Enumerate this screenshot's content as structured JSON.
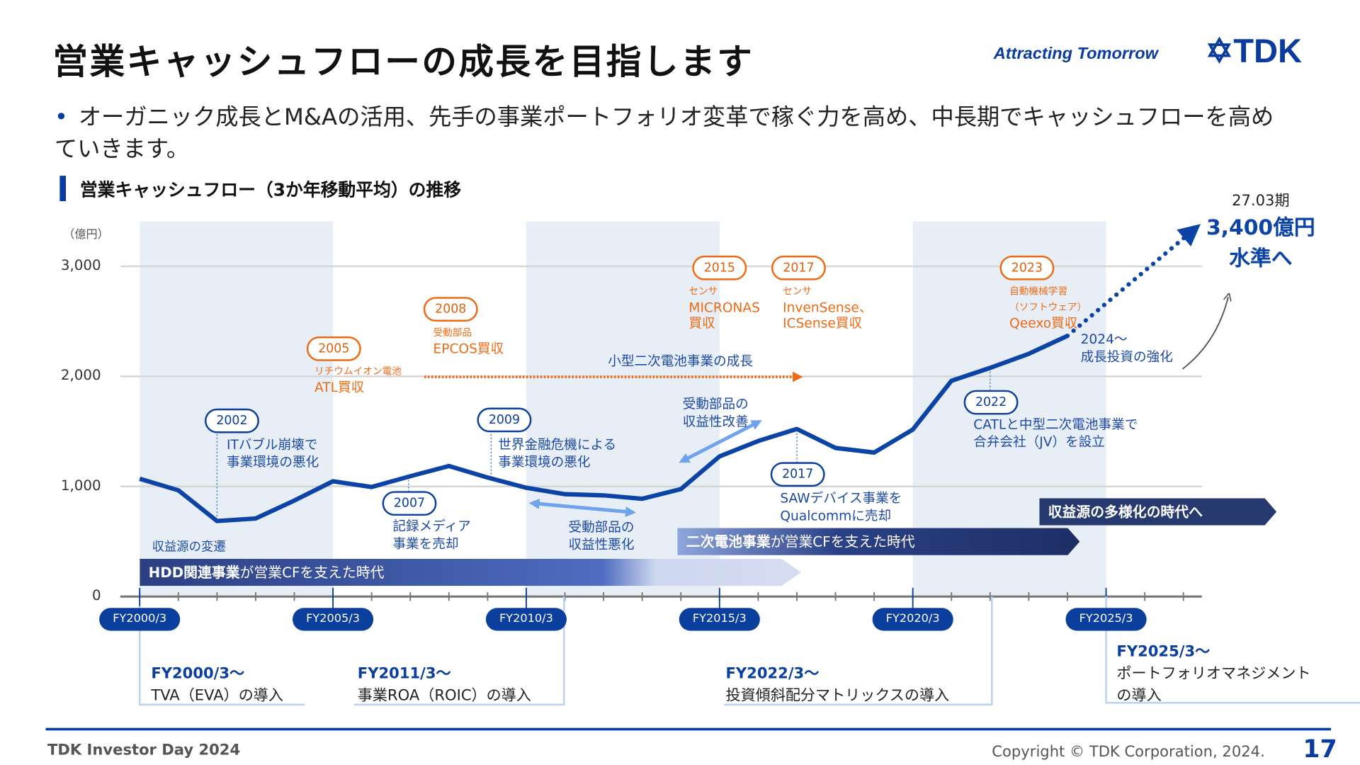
{
  "header": {
    "title": "営業キャッシュフローの成長を目指します",
    "tagline": "Attracting Tomorrow",
    "logo": "TDK"
  },
  "bullet": {
    "text": "オーガニック成長とM&Aの活用、先手の事業ポートフォリオ変革で稼ぐ力を高め、中長期でキャッシュフローを高めていきます。"
  },
  "section_title": "営業キャッシュフロー（3か年移動平均）の推移",
  "colors": {
    "brand": "#0a3ca0",
    "line": "#0b44a6",
    "acquisition": "#f06a14",
    "band_shade": "#e8eef6"
  },
  "chart_data": {
    "type": "line",
    "unit_label": "（億円）",
    "ylim": [
      0,
      3000
    ],
    "yticks": [
      "0",
      "1,000",
      "2,000",
      "3,000"
    ],
    "x_tick_labels": [
      "FY2000/3",
      "FY2005/3",
      "FY2010/3",
      "FY2015/3",
      "FY2020/3",
      "FY2025/3"
    ],
    "x": [
      2000,
      2001,
      2002,
      2003,
      2004,
      2005,
      2006,
      2007,
      2008,
      2009,
      2010,
      2011,
      2012,
      2013,
      2014,
      2015,
      2016,
      2017,
      2018,
      2019,
      2020,
      2021,
      2022,
      2023,
      2024
    ],
    "values": [
      1070,
      965,
      686,
      709,
      872,
      1047,
      995,
      1093,
      1186,
      1081,
      988,
      930,
      919,
      888,
      976,
      1273,
      1413,
      1522,
      1350,
      1308,
      1517,
      1960,
      2077,
      2205,
      2368
    ],
    "forecast": {
      "x": [
        2024,
        2027
      ],
      "values": [
        2368,
        3400
      ]
    },
    "target": {
      "period": "27.03期",
      "value": "3,400億円",
      "suffix": "水準へ"
    },
    "grid": true
  },
  "acquisitions": [
    {
      "year": "2005",
      "category": "リチウムイオン電池",
      "text": "ATL買収"
    },
    {
      "year": "2008",
      "category": "受動部品",
      "text": "EPCOS買収"
    },
    {
      "year": "2015",
      "category": "センサ",
      "text": "MICRONAS",
      "text2": "買収"
    },
    {
      "year": "2017",
      "category": "センサ",
      "text": "InvenSense、",
      "text2": "ICSense買収"
    },
    {
      "year": "2023",
      "category": "自動機械学習",
      "category2": "（ソフトウェア）",
      "text": "Qeexo買収"
    }
  ],
  "events": [
    {
      "year": "2002",
      "l1": "ITバブル崩壊で",
      "l2": "事業環境の悪化"
    },
    {
      "year": "2007",
      "l1": "記録メディア",
      "l2": "事業を売却"
    },
    {
      "year": "2009",
      "l1": "世界金融危機による",
      "l2": "事業環境の悪化"
    },
    {
      "year": "2017",
      "l1": "SAWデバイス事業を",
      "l2": "Qualcommに売却"
    },
    {
      "year": "2022",
      "l1": "CATLと中型二次電池事業で",
      "l2": "合弁会社（JV）を設立"
    }
  ],
  "notes": {
    "battery_growth": "小型二次電池事業の成長",
    "passive_improve_1": "受動部品の",
    "passive_improve_2": "収益性改善",
    "passive_worse_1": "受動部品の",
    "passive_worse_2": "収益性悪化",
    "growth_1": "2024～",
    "growth_2": "成長投資の強化",
    "revenue_shift": "収益源の変遷"
  },
  "bands": [
    {
      "bold": "HDD関連事業",
      "rest": "が営業CFを支えた時代"
    },
    {
      "bold": "二次電池事業",
      "rest": "が営業CFを支えた時代"
    },
    {
      "bold": "収益源の多様化の時代へ",
      "rest": ""
    }
  ],
  "policies": [
    {
      "title": "FY2000/3～",
      "text": "TVA（EVA）の導入"
    },
    {
      "title": "FY2011/3～",
      "text": "事業ROA（ROIC）の導入"
    },
    {
      "title": "FY2022/3～",
      "text": "投資傾斜配分マトリックスの導入"
    },
    {
      "title": "FY2025/3～",
      "text": "ポートフォリオマネジメント",
      "text2": "の導入"
    }
  ],
  "footer": {
    "event": "TDK Investor Day 2024",
    "copyright": "Copyright © TDK Corporation, 2024.",
    "page": "17"
  }
}
